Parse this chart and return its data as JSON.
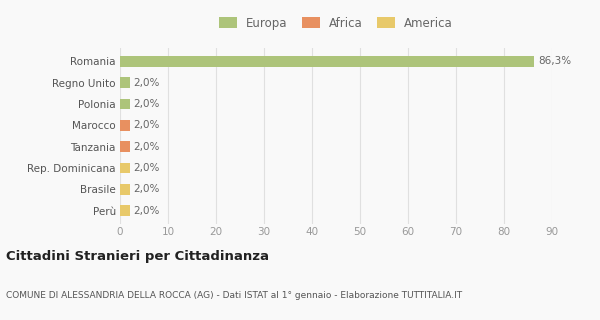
{
  "categories": [
    "Perù",
    "Brasile",
    "Rep. Dominicana",
    "Tanzania",
    "Marocco",
    "Polonia",
    "Regno Unito",
    "Romania"
  ],
  "values": [
    2.0,
    2.0,
    2.0,
    2.0,
    2.0,
    2.0,
    2.0,
    86.3
  ],
  "colors": [
    "#e8c96a",
    "#e8c96a",
    "#e8c96a",
    "#e89060",
    "#e89060",
    "#adc47a",
    "#adc47a",
    "#adc47a"
  ],
  "labels": [
    "2,0%",
    "2,0%",
    "2,0%",
    "2,0%",
    "2,0%",
    "2,0%",
    "2,0%",
    "86,3%"
  ],
  "legend": [
    {
      "label": "Europa",
      "color": "#adc47a"
    },
    {
      "label": "Africa",
      "color": "#e89060"
    },
    {
      "label": "America",
      "color": "#e8c96a"
    }
  ],
  "xlim": [
    0,
    90
  ],
  "xticks": [
    0,
    10,
    20,
    30,
    40,
    50,
    60,
    70,
    80,
    90
  ],
  "title": "Cittadini Stranieri per Cittadinanza",
  "subtitle": "COMUNE DI ALESSANDRIA DELLA ROCCA (AG) - Dati ISTAT al 1° gennaio - Elaborazione TUTTITALIA.IT",
  "bg_color": "#f9f9f9",
  "grid_color": "#e0e0e0",
  "bar_height": 0.5
}
